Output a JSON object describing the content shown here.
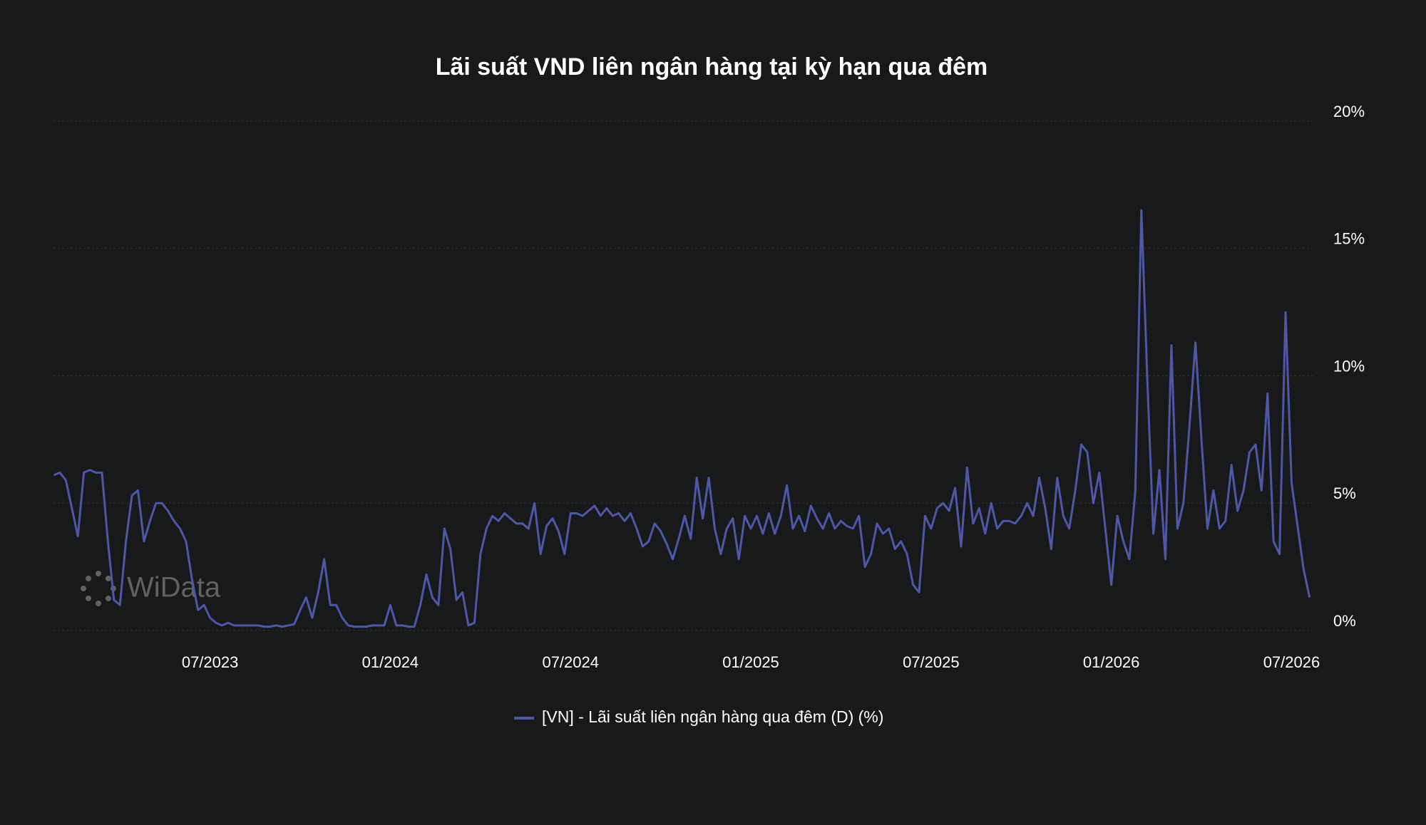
{
  "chart_data": {
    "type": "line",
    "title": "Lãi suất VND liên ngân hàng tại kỳ hạn qua đêm",
    "watermark": "WiData",
    "categories": [
      null,
      null,
      null,
      null,
      null,
      null,
      null,
      null,
      null,
      null,
      null,
      null,
      null,
      null,
      null,
      null,
      null,
      null,
      null,
      null,
      null,
      null,
      null,
      null,
      null,
      null,
      "07/2023",
      null,
      null,
      null,
      null,
      null,
      null,
      null,
      null,
      null,
      null,
      null,
      null,
      null,
      null,
      null,
      null,
      null,
      null,
      null,
      null,
      null,
      null,
      null,
      null,
      null,
      null,
      null,
      null,
      null,
      "01/2024",
      null,
      null,
      null,
      null,
      null,
      null,
      null,
      null,
      null,
      null,
      null,
      null,
      null,
      null,
      null,
      null,
      null,
      null,
      null,
      null,
      null,
      null,
      null,
      null,
      null,
      null,
      null,
      null,
      null,
      "07/2024",
      null,
      null,
      null,
      null,
      null,
      null,
      null,
      null,
      null,
      null,
      null,
      null,
      null,
      null,
      null,
      null,
      null,
      null,
      null,
      null,
      null,
      null,
      null,
      null,
      null,
      null,
      null,
      null,
      null,
      "01/2025",
      null,
      null,
      null,
      null,
      null,
      null,
      null,
      null,
      null,
      null,
      null,
      null,
      null,
      null,
      null,
      null,
      null,
      null,
      null,
      null,
      null,
      null,
      null,
      null,
      null,
      null,
      null,
      null,
      null,
      "07/2025",
      null,
      null,
      null,
      null,
      null,
      null,
      null,
      null,
      null,
      null,
      null,
      null,
      null,
      null,
      null,
      null,
      null,
      null,
      null,
      null,
      null,
      null,
      null,
      null,
      null,
      null,
      null,
      null,
      null,
      "01/2026",
      null,
      null,
      null,
      null,
      null,
      null,
      null,
      null,
      null,
      null,
      null,
      null,
      null,
      null,
      null,
      null,
      null,
      null,
      null,
      null,
      null,
      null,
      null,
      null,
      null,
      null,
      null,
      null,
      null,
      "07/2026",
      null,
      null,
      null
    ],
    "series": [
      {
        "name": "[VN] - Lãi suất liên ngân hàng qua đêm (D) (%)",
        "color": "#5057a6",
        "values": [
          6.1,
          6.2,
          5.9,
          4.8,
          3.7,
          6.2,
          6.3,
          6.2,
          6.2,
          3.5,
          1.2,
          1.0,
          3.5,
          5.3,
          5.5,
          3.5,
          4.3,
          5.0,
          5.0,
          4.7,
          4.3,
          4.0,
          3.5,
          2.0,
          0.8,
          1.0,
          0.5,
          0.3,
          0.2,
          0.3,
          0.2,
          0.2,
          0.2,
          0.2,
          0.2,
          0.15,
          0.15,
          0.2,
          0.15,
          0.2,
          0.25,
          0.8,
          1.3,
          0.5,
          1.5,
          2.8,
          1.0,
          1.0,
          0.5,
          0.2,
          0.15,
          0.15,
          0.15,
          0.2,
          0.2,
          0.2,
          1.0,
          0.2,
          0.2,
          0.15,
          0.15,
          1.0,
          2.2,
          1.3,
          1.0,
          4.0,
          3.2,
          1.2,
          1.5,
          0.2,
          0.3,
          3.0,
          4.0,
          4.5,
          4.3,
          4.6,
          4.4,
          4.2,
          4.2,
          4.0,
          5.0,
          3.0,
          4.1,
          4.4,
          3.9,
          3.0,
          4.6,
          4.6,
          4.5,
          4.7,
          4.9,
          4.5,
          4.8,
          4.5,
          4.6,
          4.3,
          4.6,
          4.0,
          3.3,
          3.5,
          4.2,
          3.9,
          3.4,
          2.8,
          3.6,
          4.5,
          3.6,
          6.0,
          4.4,
          6.0,
          4.0,
          3.0,
          4.0,
          4.4,
          2.8,
          4.5,
          4.0,
          4.5,
          3.8,
          4.6,
          3.8,
          4.5,
          5.7,
          4.0,
          4.5,
          3.9,
          4.9,
          4.4,
          4.0,
          4.6,
          4.0,
          4.3,
          4.1,
          4.0,
          4.5,
          2.5,
          3.0,
          4.2,
          3.8,
          4.0,
          3.2,
          3.5,
          3.0,
          1.8,
          1.5,
          4.5,
          4.0,
          4.8,
          5.0,
          4.7,
          5.6,
          3.3,
          6.4,
          4.2,
          4.8,
          3.8,
          5.0,
          4.0,
          4.3,
          4.3,
          4.2,
          4.5,
          5.0,
          4.5,
          6.0,
          4.8,
          3.2,
          6.0,
          4.5,
          4.0,
          5.5,
          7.3,
          7.0,
          5.0,
          6.2,
          4.0,
          1.8,
          4.5,
          3.5,
          2.8,
          5.5,
          16.5,
          9.8,
          3.8,
          6.3,
          2.8,
          11.2,
          4.0,
          5.0,
          8.0,
          11.3,
          7.5,
          4.0,
          5.5,
          4.0,
          4.3,
          6.5,
          4.7,
          5.5,
          7.0,
          7.3,
          5.5,
          9.3,
          3.5,
          3.0,
          12.5,
          5.8,
          4.1,
          2.4,
          1.3
        ]
      }
    ],
    "ylim": [
      0,
      20
    ],
    "yticks": [
      {
        "value": 0,
        "label": "0%"
      },
      {
        "value": 5,
        "label": "5%"
      },
      {
        "value": 10,
        "label": "10%"
      },
      {
        "value": 15,
        "label": "15%"
      },
      {
        "value": 20,
        "label": "20%"
      }
    ],
    "grid": true,
    "legend": "bottom"
  }
}
